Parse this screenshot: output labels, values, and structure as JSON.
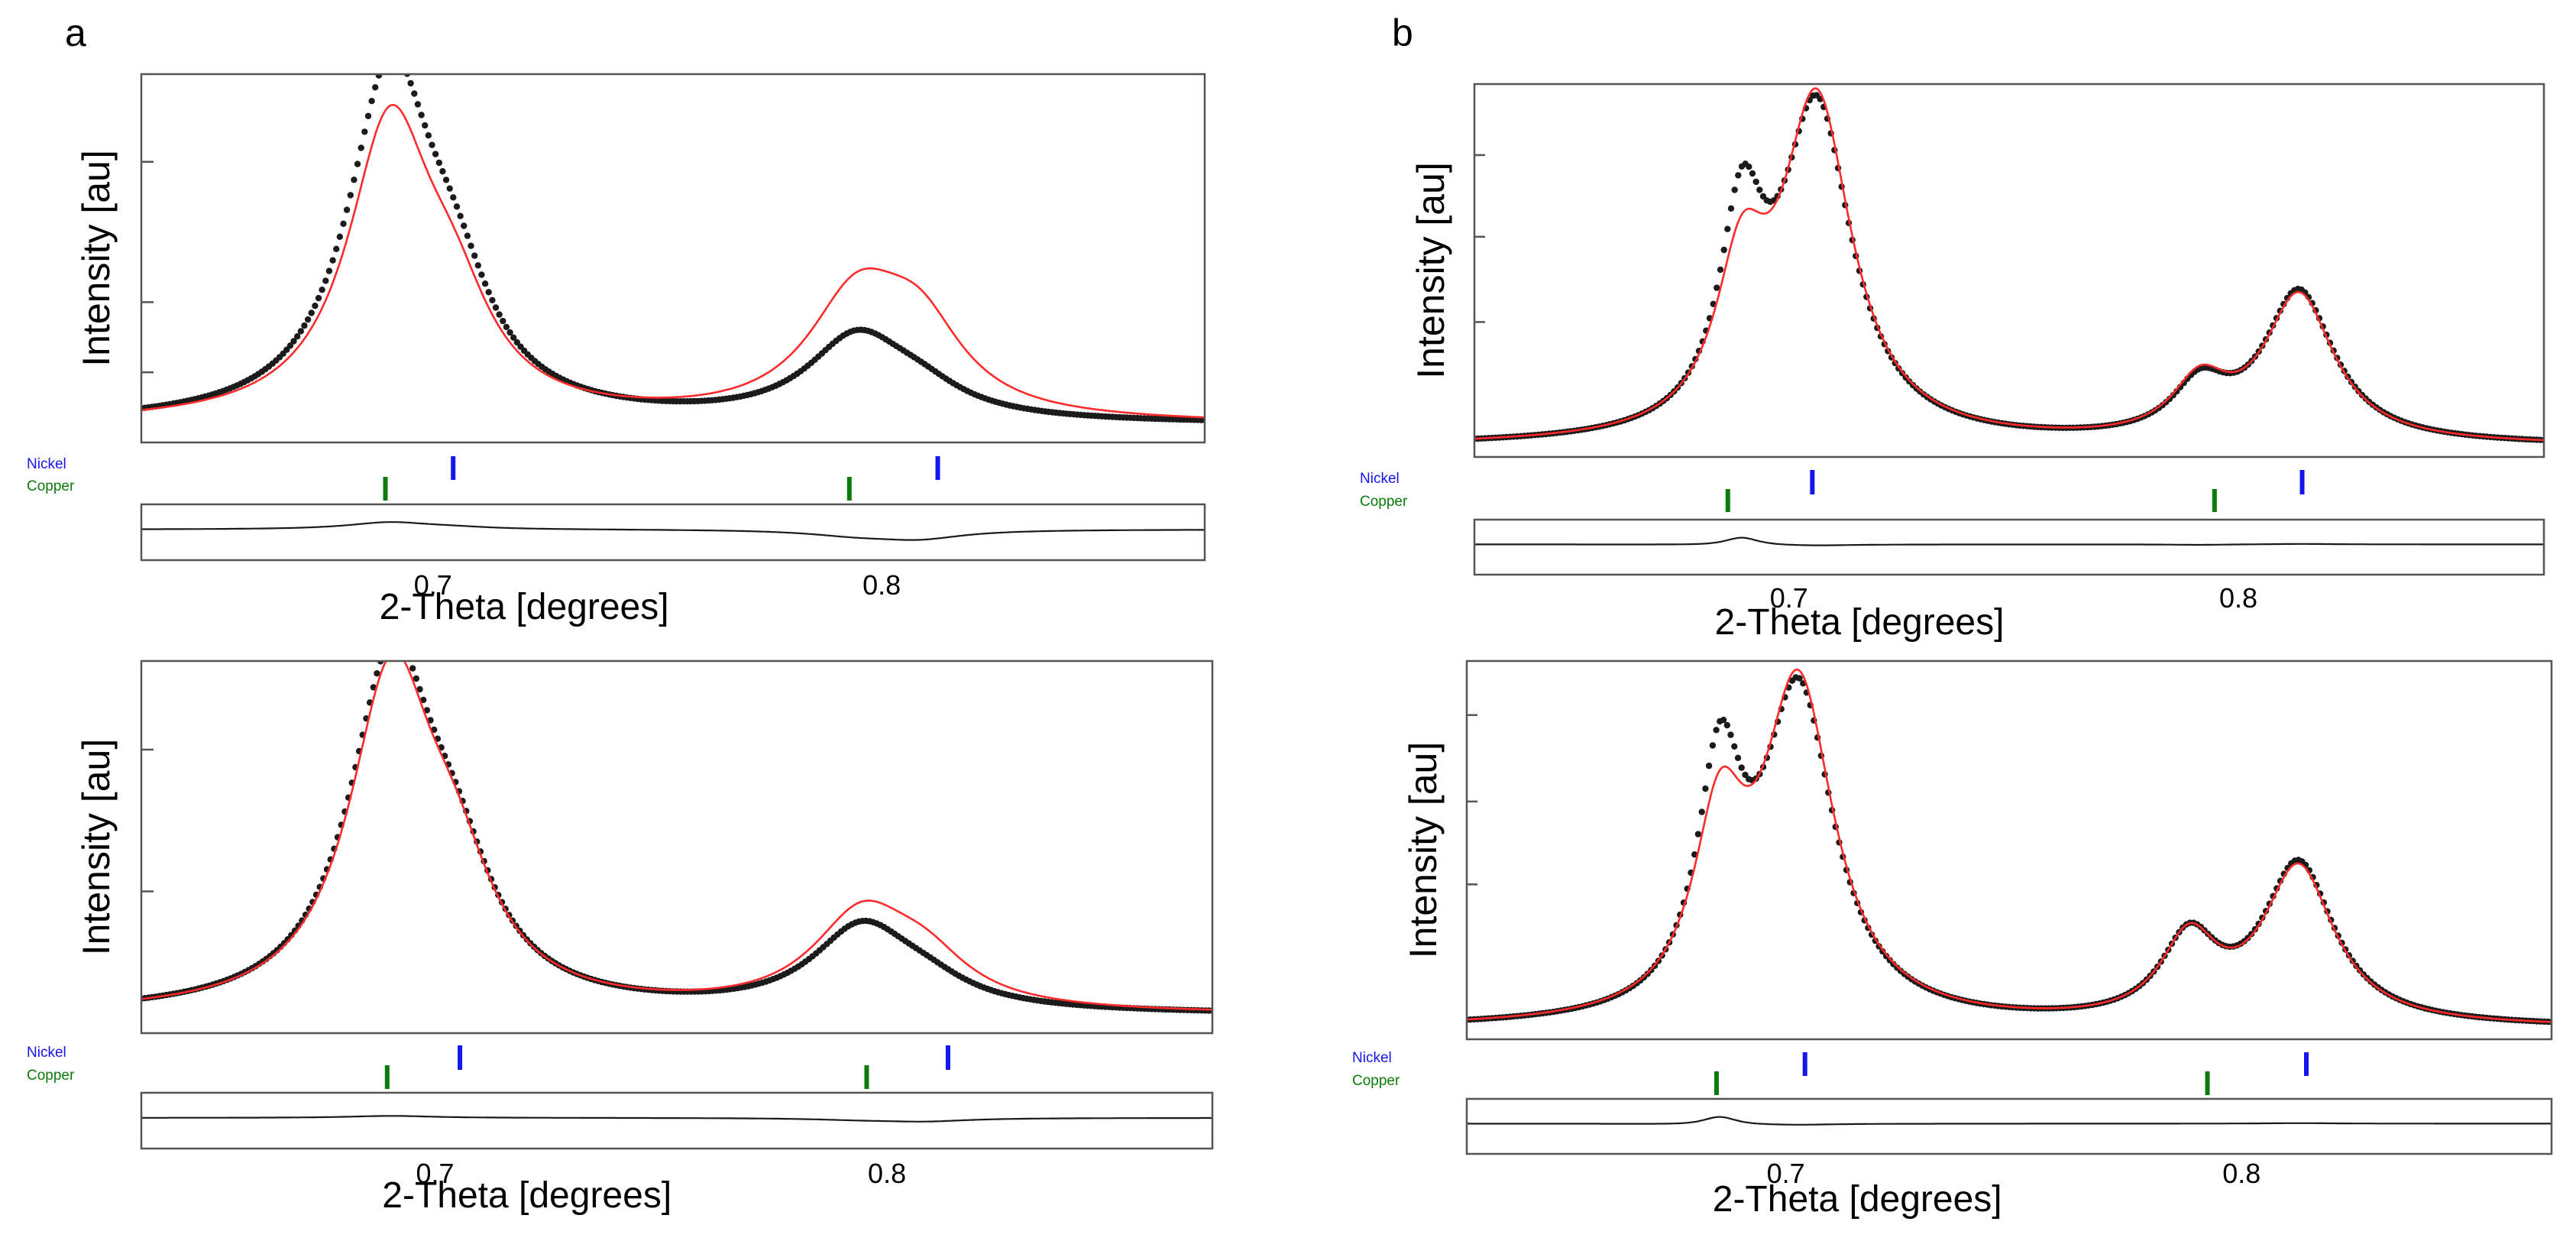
{
  "colors": {
    "observed": "#1b1b1b",
    "calculated": "#ff2a2a",
    "difference": "#1a1a1a",
    "nickel": "#1515ee",
    "copper": "#0c7a0c"
  },
  "chart_data": [
    {
      "id": "a-top",
      "panel_letter": "a",
      "type": "line",
      "ylabel": "Intensity [au]",
      "xlabel": "2-Theta [degrees]",
      "xlim": [
        0.635,
        0.872
      ],
      "ylim": [
        0,
        1.05
      ],
      "xticks": [
        "0.7",
        "0.8"
      ],
      "legend": [
        "Nickel",
        "Copper"
      ],
      "observed_peaks": [
        [
          0.6904,
          0.96,
          0.0115
        ],
        [
          0.7045,
          0.26,
          0.0105
        ],
        [
          0.7945,
          0.23,
          0.0135
        ],
        [
          0.8085,
          0.06,
          0.012
        ]
      ],
      "calculated_peaks": [
        [
          0.6904,
          0.82,
          0.0115
        ],
        [
          0.7045,
          0.23,
          0.0105
        ],
        [
          0.7945,
          0.33,
          0.0135
        ],
        [
          0.8085,
          0.22,
          0.012
        ]
      ],
      "baseline": 0.05,
      "nickel_positions": [
        0.7045,
        0.8125
      ],
      "copper_positions": [
        0.6894,
        0.7928
      ]
    },
    {
      "id": "a-bottom",
      "panel_letter": "",
      "type": "line",
      "ylabel": "Intensity [au]",
      "xlabel": "2-Theta [degrees]",
      "xlim": [
        0.635,
        0.872
      ],
      "ylim": [
        0,
        1.05
      ],
      "xticks": [
        "0.7",
        "0.8"
      ],
      "legend": [
        "Nickel",
        "Copper"
      ],
      "observed_peaks": [
        [
          0.6904,
          0.96,
          0.0115
        ],
        [
          0.7045,
          0.27,
          0.0105
        ],
        [
          0.7945,
          0.23,
          0.0135
        ],
        [
          0.8085,
          0.05,
          0.012
        ]
      ],
      "calculated_peaks": [
        [
          0.6904,
          0.92,
          0.0115
        ],
        [
          0.7045,
          0.27,
          0.0105
        ],
        [
          0.7945,
          0.26,
          0.0135
        ],
        [
          0.8085,
          0.11,
          0.012
        ]
      ],
      "baseline": 0.05,
      "nickel_positions": [
        0.7055,
        0.8135
      ],
      "copper_positions": [
        0.6894,
        0.7955
      ]
    },
    {
      "id": "b-top",
      "panel_letter": "b",
      "type": "line",
      "ylabel": "Intensity [au]",
      "xlabel": "2-Theta [degrees]",
      "xlim": [
        0.63,
        0.868
      ],
      "ylim": [
        0,
        1.05
      ],
      "xticks": [
        "0.7",
        "0.8"
      ],
      "legend": [
        "Nickel",
        "Copper"
      ],
      "observed_peaks": [
        [
          0.6895,
          0.56,
          0.006
        ],
        [
          0.7062,
          0.92,
          0.0095
        ],
        [
          0.7915,
          0.14,
          0.0075
        ],
        [
          0.8135,
          0.42,
          0.0095
        ]
      ],
      "calculated_peaks": [
        [
          0.6895,
          0.42,
          0.007
        ],
        [
          0.7062,
          0.94,
          0.0095
        ],
        [
          0.7915,
          0.15,
          0.0075
        ],
        [
          0.8135,
          0.41,
          0.0095
        ]
      ],
      "baseline": 0.03,
      "nickel_positions": [
        0.7052,
        0.8142
      ],
      "copper_positions": [
        0.6864,
        0.7947
      ]
    },
    {
      "id": "b-bottom",
      "panel_letter": "",
      "type": "line",
      "ylabel": "Intensity [au]",
      "xlabel": "2-Theta [degrees]",
      "xlim": [
        0.63,
        0.868
      ],
      "ylim": [
        0,
        1.05
      ],
      "xticks": [
        "0.7",
        "0.8"
      ],
      "legend": [
        "Nickel",
        "Copper"
      ],
      "observed_peaks": [
        [
          0.6855,
          0.64,
          0.006
        ],
        [
          0.7028,
          0.9,
          0.0095
        ],
        [
          0.7885,
          0.22,
          0.0075
        ],
        [
          0.8125,
          0.44,
          0.0095
        ]
      ],
      "calculated_peaks": [
        [
          0.6855,
          0.5,
          0.007
        ],
        [
          0.7028,
          0.92,
          0.0095
        ],
        [
          0.7885,
          0.22,
          0.0075
        ],
        [
          0.8125,
          0.43,
          0.0095
        ]
      ],
      "baseline": 0.03,
      "nickel_positions": [
        0.7042,
        0.8142
      ],
      "copper_positions": [
        0.6848,
        0.7925
      ]
    }
  ]
}
